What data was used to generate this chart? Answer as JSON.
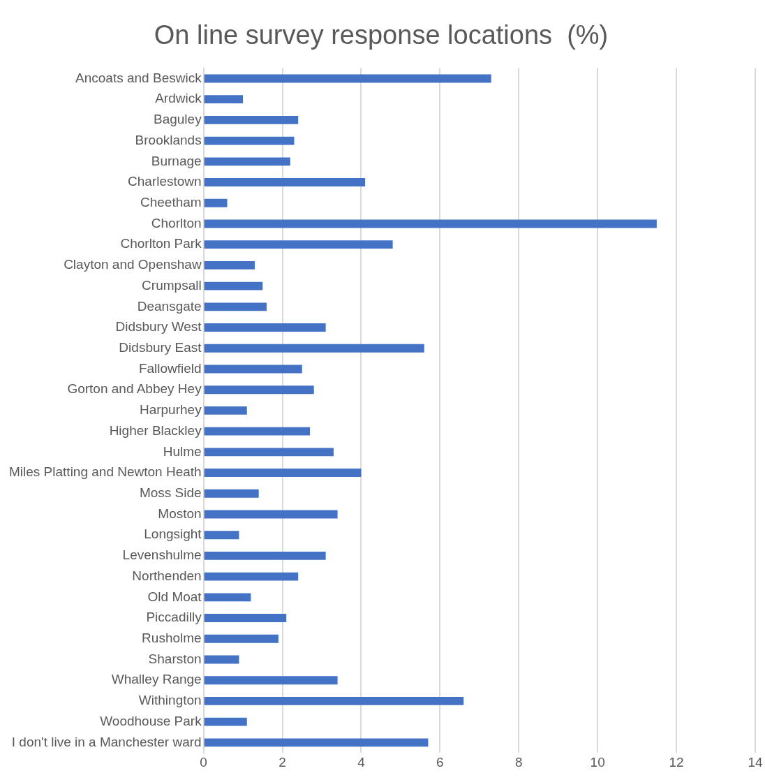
{
  "chart_data": {
    "type": "bar",
    "orientation": "horizontal",
    "title": "On line survey response locations  (%)",
    "categories": [
      "Ancoats and Beswick",
      "Ardwick",
      "Baguley",
      "Brooklands",
      "Burnage",
      "Charlestown",
      "Cheetham",
      "Chorlton",
      "Chorlton Park",
      "Clayton and Openshaw",
      "Crumpsall",
      "Deansgate",
      "Didsbury West",
      "Didsbury East",
      "Fallowfield",
      "Gorton and Abbey Hey",
      "Harpurhey",
      "Higher Blackley",
      "Hulme",
      "Miles Platting and Newton Heath",
      "Moss Side",
      "Moston",
      "Longsight",
      "Levenshulme",
      "Northenden",
      "Old Moat",
      "Piccadilly",
      "Rusholme",
      "Sharston",
      "Whalley Range",
      "Withington",
      "Woodhouse Park",
      "I don't live in a Manchester ward"
    ],
    "values": [
      7.3,
      1.0,
      2.4,
      2.3,
      2.2,
      4.1,
      0.6,
      11.5,
      4.8,
      1.3,
      1.5,
      1.6,
      3.1,
      5.6,
      2.5,
      2.8,
      1.1,
      2.7,
      3.3,
      4.0,
      1.4,
      3.4,
      0.9,
      3.1,
      2.4,
      1.2,
      2.1,
      1.9,
      0.9,
      3.4,
      6.6,
      1.1,
      5.7
    ],
    "color": "#4472c4",
    "xlim": [
      0,
      14
    ],
    "xticks": [
      0,
      2,
      4,
      6,
      8,
      10,
      12,
      14
    ],
    "grid": "x"
  }
}
